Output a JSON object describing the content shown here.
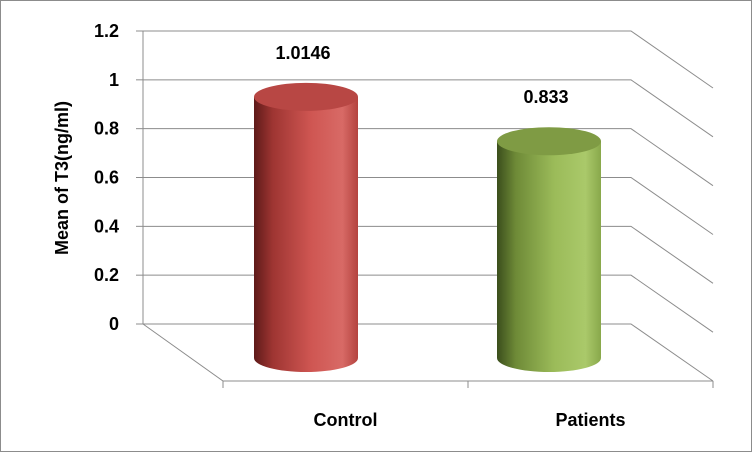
{
  "chart_data": {
    "type": "bar",
    "style": "3d-cylinder",
    "categories": [
      "Control",
      "Patients"
    ],
    "values": [
      1.0146,
      0.833
    ],
    "data_labels": [
      "1.0146",
      "0.833"
    ],
    "ylabel": "Mean of T3(ng/ml)",
    "ylim": [
      0,
      1.2
    ],
    "yticks": [
      "0",
      "0.2",
      "0.4",
      "0.6",
      "0.8",
      "1",
      "1.2"
    ],
    "grid": true,
    "legend": "none",
    "colors": [
      "#c0504d",
      "#9bbb59"
    ]
  }
}
